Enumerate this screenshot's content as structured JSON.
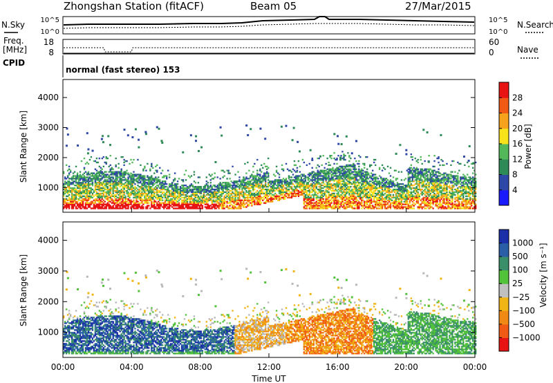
{
  "header": {
    "station": "Zhongshan Station (fitACF)",
    "beam": "Beam 05",
    "date": "27/Mar/2015"
  },
  "panels": {
    "nsky_label": "N.Sky",
    "nsky_ticks": [
      "10^5",
      "10^0"
    ],
    "nsearch_label": "N.Search",
    "nsearch_ticks": [
      "10^5",
      "10^0"
    ],
    "freq_label": "Freq.",
    "freq_unit": "[MHz]",
    "freq_ticks": [
      "18",
      "8"
    ],
    "nave_label": "Nave",
    "nave_ticks": [
      "60",
      "0"
    ],
    "cpid_label": "CPID",
    "cpid_text": "normal (fast stereo) 153"
  },
  "colors": {
    "power_scale": [
      "#1a1aff",
      "#2f48a8",
      "#2e8b57",
      "#52b85a",
      "#f7e21c",
      "#f7a21c",
      "#f05a14",
      "#e81414"
    ],
    "velocity_scale": [
      "#1a2fa8",
      "#2a5fa8",
      "#3a8f6a",
      "#52c23a",
      "#b8b8b8",
      "#f0b414",
      "#f08a14",
      "#f05a14",
      "#e81414"
    ],
    "velocity_colorbar": [
      "#1a2fa8",
      "#2a5fa8",
      "#3a8f6a",
      "#52c23a",
      "#c0c0c0",
      "#f0b414",
      "#f08a14",
      "#f05a14",
      "#e81414"
    ]
  },
  "chart_data": [
    {
      "type": "heatmap",
      "name": "power",
      "xlabel": "",
      "ylabel": "Slant Range [km]",
      "xlim": [
        0,
        24
      ],
      "ylim": [
        180,
        4600
      ],
      "y_ticks": [
        "4000",
        "3000",
        "2000",
        "1000"
      ],
      "y_tick_values": [
        4000,
        3000,
        2000,
        1000
      ],
      "colorbar_label": "Power [dB]",
      "colorbar_ticks": [
        "28",
        "24",
        "20",
        "16",
        "12",
        "8",
        "4"
      ],
      "colorbar_range": [
        0,
        32
      ]
    },
    {
      "type": "heatmap",
      "name": "velocity",
      "xlabel": "Time UT",
      "ylabel": "Slant Range [km]",
      "xlim": [
        0,
        24
      ],
      "ylim": [
        180,
        4600
      ],
      "x_ticks": [
        "00:00",
        "04:00",
        "08:00",
        "12:00",
        "16:00",
        "20:00",
        "00:00"
      ],
      "x_tick_values": [
        0,
        4,
        8,
        12,
        16,
        20,
        24
      ],
      "y_ticks": [
        "4000",
        "3000",
        "2000",
        "1000"
      ],
      "y_tick_values": [
        4000,
        3000,
        2000,
        1000
      ],
      "colorbar_label": "Velocity [m s⁻¹]",
      "colorbar_ticks": [
        "1000",
        "500",
        "100",
        "25",
        "−25",
        "−100",
        "−500",
        "−1000"
      ]
    }
  ]
}
